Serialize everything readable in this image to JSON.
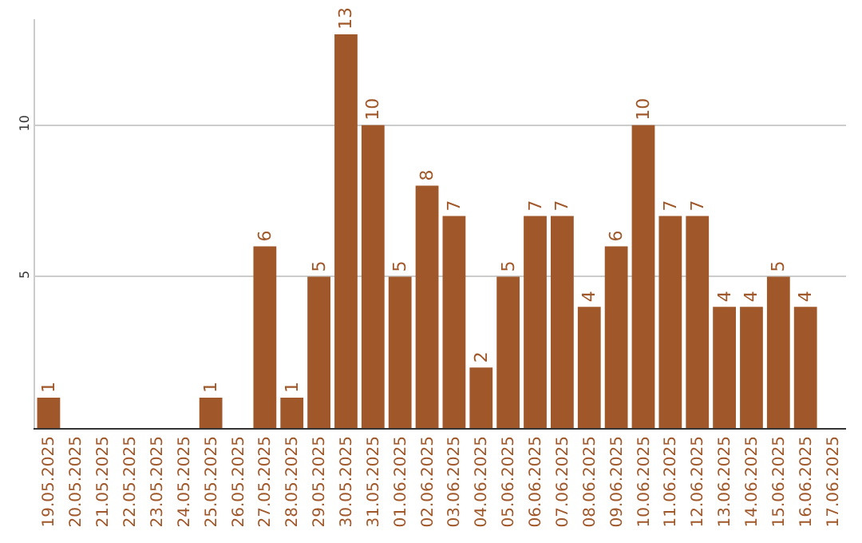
{
  "chart_data": {
    "type": "bar",
    "categories": [
      "19.05.2025",
      "20.05.2025",
      "21.05.2025",
      "22.05.2025",
      "23.05.2025",
      "24.05.2025",
      "25.05.2025",
      "26.05.2025",
      "27.05.2025",
      "28.05.2025",
      "29.05.2025",
      "30.05.2025",
      "31.05.2025",
      "01.06.2025",
      "02.06.2025",
      "03.06.2025",
      "04.06.2025",
      "05.06.2025",
      "06.06.2025",
      "07.06.2025",
      "08.06.2025",
      "09.06.2025",
      "10.06.2025",
      "11.06.2025",
      "12.06.2025",
      "13.06.2025",
      "14.06.2025",
      "15.06.2025",
      "16.06.2025",
      "17.06.2025"
    ],
    "values": [
      1,
      0,
      0,
      0,
      0,
      0,
      1,
      0,
      6,
      1,
      5,
      13,
      10,
      5,
      8,
      7,
      2,
      5,
      7,
      7,
      4,
      6,
      10,
      7,
      7,
      4,
      4,
      5,
      4,
      0
    ],
    "value_labels": [
      "1",
      null,
      null,
      null,
      null,
      null,
      "1",
      null,
      "6",
      "1",
      "5",
      "13",
      "10",
      "5",
      "8",
      "7",
      "2",
      "5",
      "7",
      "7",
      "4",
      "6",
      "10",
      "7",
      "7",
      "4",
      "4",
      "5",
      "4",
      null
    ],
    "color": "#a0582a",
    "ylim": [
      0,
      13.5
    ],
    "yticks": [
      5,
      10
    ],
    "grid": "y",
    "legend": false
  }
}
